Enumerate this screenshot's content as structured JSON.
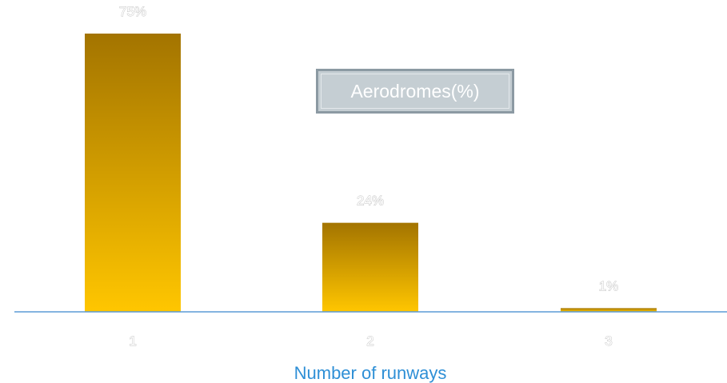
{
  "chart_data": {
    "type": "bar",
    "categories": [
      "1",
      "2",
      "3"
    ],
    "values": [
      75,
      24,
      1
    ],
    "value_labels": [
      "75%",
      "24%",
      "1%"
    ],
    "series": [
      {
        "name": "Aerodromes(%)",
        "values": [
          75,
          24,
          1
        ]
      }
    ],
    "title": "",
    "xlabel": "Number of runways",
    "ylabel": "",
    "ylim": [
      0,
      75
    ],
    "grid": false,
    "legend": {
      "text": "Aerodromes(%)",
      "placement": "top-center"
    },
    "colors": {
      "bar_top": "#a37400",
      "bar_bottom": "#ffc600",
      "axis": "#5b9bd5",
      "xlabel": "#2e8fd6",
      "legend_fill": "#c5ced3",
      "legend_border": "#8c9aa3"
    }
  }
}
